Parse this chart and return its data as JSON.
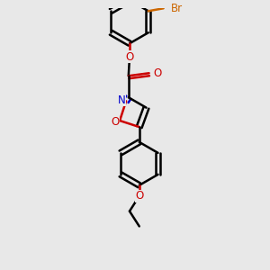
{
  "background_color": "#e8e8e8",
  "bond_color": "#000000",
  "nitrogen_color": "#0000cc",
  "oxygen_color": "#cc0000",
  "bromine_color": "#cc6600",
  "line_width": 1.8,
  "figsize": [
    3.0,
    3.0
  ],
  "dpi": 100,
  "xlim": [
    -1.0,
    1.8
  ],
  "ylim": [
    -3.2,
    1.6
  ]
}
